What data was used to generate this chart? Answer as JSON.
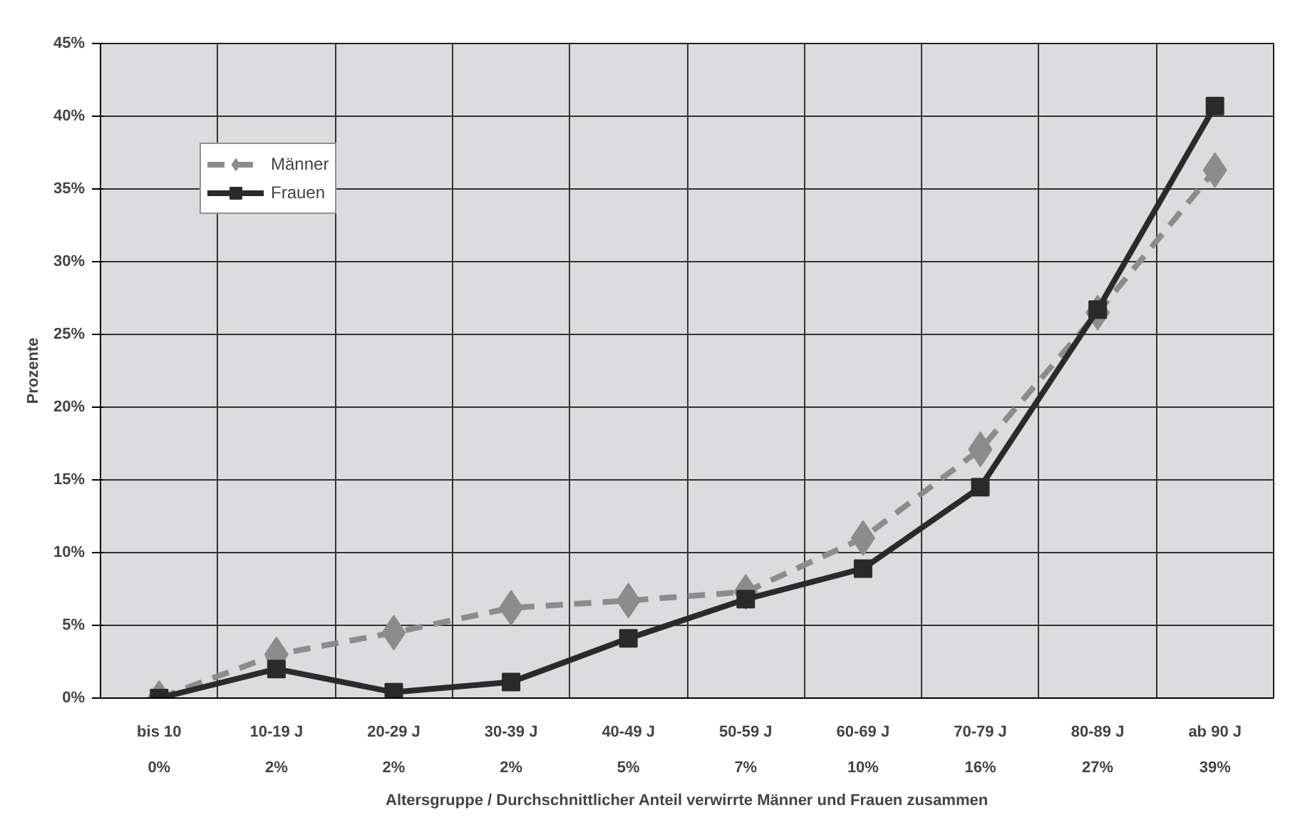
{
  "chart_data": {
    "type": "line",
    "xlabel": "Altersgruppe / Durchschnittlicher Anteil verwirrte Männer und Frauen zusammen",
    "ylabel": "Prozente",
    "categories": [
      "bis 10",
      "10-19 J",
      "20-29 J",
      "30-39 J",
      "40-49 J",
      "50-59 J",
      "60-69 J",
      "70-79 J",
      "80-89 J",
      "ab 90 J"
    ],
    "series": [
      {
        "name": "Männer",
        "color": "#8c8c8c",
        "marker": "diamond",
        "line_style": "dashed",
        "values": [
          0,
          3.0,
          4.5,
          6.2,
          6.7,
          7.3,
          11.0,
          17.1,
          26.5,
          36.3
        ]
      },
      {
        "name": "Frauen",
        "color": "#2a2a2a",
        "marker": "square",
        "line_style": "solid",
        "values": [
          0,
          2.0,
          0.4,
          1.1,
          4.1,
          6.8,
          8.9,
          14.5,
          26.7,
          40.7
        ]
      }
    ],
    "annotations": [
      "0%",
      "2%",
      "2%",
      "2%",
      "5%",
      "7%",
      "10%",
      "16%",
      "27%",
      "39%"
    ],
    "ylim": [
      0,
      45
    ],
    "yticks": [
      {
        "value": 0,
        "label": "0%"
      },
      {
        "value": 5,
        "label": "5%"
      },
      {
        "value": 10,
        "label": "10%"
      },
      {
        "value": 15,
        "label": "15%"
      },
      {
        "value": 20,
        "label": "20%"
      },
      {
        "value": 25,
        "label": "25%"
      },
      {
        "value": 30,
        "label": "30%"
      },
      {
        "value": 35,
        "label": "35%"
      },
      {
        "value": 40,
        "label": "40%"
      },
      {
        "value": 45,
        "label": "45%"
      }
    ],
    "grid": true,
    "legend": "top left"
  }
}
